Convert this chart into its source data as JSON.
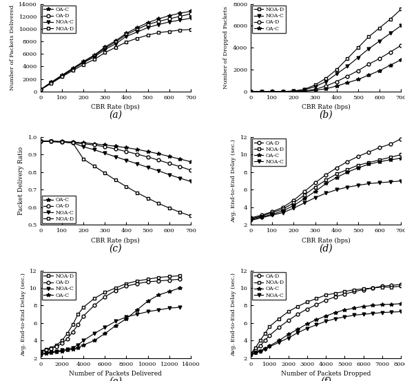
{
  "cbr_rates": [
    0,
    50,
    100,
    150,
    200,
    250,
    300,
    350,
    400,
    450,
    500,
    550,
    600,
    650,
    700
  ],
  "a_OA_C": [
    300,
    1500,
    2600,
    3700,
    4800,
    5800,
    7100,
    8100,
    9300,
    10200,
    11000,
    11600,
    12100,
    12500,
    12800
  ],
  "a_OA_D": [
    300,
    1450,
    2550,
    3650,
    4700,
    5700,
    6900,
    7900,
    9100,
    9900,
    10700,
    11200,
    11600,
    12000,
    12400
  ],
  "a_NOA_C": [
    300,
    1400,
    2450,
    3550,
    4600,
    5500,
    6700,
    7600,
    8800,
    9500,
    10200,
    10700,
    11100,
    11400,
    11700
  ],
  "a_NOA_D": [
    280,
    1300,
    2350,
    3350,
    4300,
    5100,
    6200,
    7050,
    7900,
    8500,
    9000,
    9400,
    9600,
    9800,
    9900
  ],
  "b_NOA_D": [
    0,
    0,
    0,
    0,
    50,
    200,
    600,
    1200,
    2000,
    3000,
    4000,
    5000,
    5800,
    6600,
    7500
  ],
  "b_NOA_C": [
    0,
    0,
    0,
    0,
    30,
    150,
    450,
    900,
    1600,
    2300,
    3100,
    3900,
    4600,
    5300,
    6000
  ],
  "b_OA_D": [
    0,
    0,
    0,
    0,
    10,
    50,
    200,
    500,
    900,
    1400,
    1900,
    2500,
    3000,
    3600,
    4200
  ],
  "b_OA_C": [
    0,
    0,
    0,
    0,
    5,
    30,
    100,
    250,
    500,
    800,
    1100,
    1500,
    1900,
    2400,
    2900
  ],
  "c_OA_C": [
    0.978,
    0.978,
    0.975,
    0.972,
    0.968,
    0.962,
    0.955,
    0.948,
    0.94,
    0.93,
    0.918,
    0.905,
    0.89,
    0.875,
    0.86
  ],
  "c_OA_D": [
    0.975,
    0.975,
    0.972,
    0.968,
    0.962,
    0.955,
    0.945,
    0.932,
    0.918,
    0.903,
    0.887,
    0.869,
    0.85,
    0.832,
    0.812
  ],
  "c_NOA_C": [
    0.975,
    0.975,
    0.972,
    0.968,
    0.945,
    0.928,
    0.908,
    0.888,
    0.868,
    0.848,
    0.828,
    0.808,
    0.786,
    0.766,
    0.747
  ],
  "c_NOA_D": [
    0.975,
    0.975,
    0.972,
    0.968,
    0.875,
    0.835,
    0.795,
    0.755,
    0.718,
    0.683,
    0.652,
    0.622,
    0.596,
    0.572,
    0.551
  ],
  "d_cbr": [
    0,
    50,
    100,
    150,
    200,
    250,
    300,
    350,
    400,
    450,
    500,
    550,
    600,
    650,
    700
  ],
  "d_OA_D": [
    2.8,
    3.1,
    3.5,
    4.0,
    4.8,
    5.8,
    6.8,
    7.7,
    8.5,
    9.2,
    9.8,
    10.3,
    10.8,
    11.2,
    11.8
  ],
  "d_NOA_D": [
    2.7,
    3.0,
    3.4,
    3.8,
    4.5,
    5.4,
    6.3,
    7.1,
    7.8,
    8.3,
    8.8,
    9.1,
    9.4,
    9.7,
    10.0
  ],
  "d_OA_C": [
    2.6,
    2.9,
    3.2,
    3.6,
    4.2,
    5.0,
    5.8,
    6.7,
    7.4,
    8.0,
    8.5,
    8.9,
    9.2,
    9.4,
    9.6
  ],
  "d_NOA_C": [
    2.5,
    2.8,
    3.1,
    3.4,
    3.9,
    4.5,
    5.1,
    5.6,
    6.0,
    6.3,
    6.5,
    6.7,
    6.8,
    6.9,
    7.0
  ],
  "e_pkts": [
    0,
    500,
    1000,
    1500,
    2000,
    2500,
    3000,
    3500,
    4000,
    5000,
    6000,
    7000,
    8000,
    9000,
    10000,
    11000,
    12000,
    13000
  ],
  "e_NOA_D": [
    2.8,
    3.0,
    3.2,
    3.5,
    4.0,
    4.8,
    5.8,
    7.0,
    7.8,
    8.8,
    9.5,
    10.0,
    10.5,
    10.8,
    11.0,
    11.2,
    11.3,
    11.4
  ],
  "e_OA_D": [
    2.7,
    2.9,
    3.1,
    3.3,
    3.7,
    4.2,
    5.0,
    5.8,
    6.8,
    8.0,
    9.0,
    9.7,
    10.2,
    10.5,
    10.7,
    10.8,
    10.9,
    11.0
  ],
  "e_NOA_C": [
    2.5,
    2.6,
    2.7,
    2.8,
    2.9,
    3.0,
    3.2,
    3.5,
    4.0,
    4.8,
    5.5,
    6.2,
    6.7,
    7.0,
    7.3,
    7.5,
    7.7,
    7.8
  ],
  "e_OA_C": [
    2.4,
    2.5,
    2.6,
    2.7,
    2.8,
    2.9,
    3.0,
    3.2,
    3.5,
    4.0,
    4.8,
    5.7,
    6.5,
    7.5,
    8.5,
    9.2,
    9.6,
    10.0
  ],
  "f_dropped": [
    0,
    250,
    500,
    750,
    1000,
    1500,
    2000,
    2500,
    3000,
    3500,
    4000,
    4500,
    5000,
    5500,
    6000,
    6500,
    7000,
    7500,
    8000
  ],
  "f_OA_D": [
    2.5,
    2.9,
    3.4,
    4.0,
    4.6,
    5.5,
    6.3,
    7.0,
    7.6,
    8.1,
    8.6,
    9.0,
    9.3,
    9.6,
    9.8,
    10.0,
    10.2,
    10.3,
    10.4
  ],
  "f_NOA_D": [
    2.5,
    3.2,
    4.0,
    4.8,
    5.6,
    6.5,
    7.3,
    7.9,
    8.4,
    8.8,
    9.2,
    9.4,
    9.6,
    9.8,
    9.9,
    10.0,
    10.1,
    10.1,
    10.2
  ],
  "f_OA_C": [
    2.4,
    2.6,
    2.8,
    3.1,
    3.4,
    4.0,
    4.7,
    5.3,
    5.9,
    6.4,
    6.8,
    7.2,
    7.5,
    7.7,
    7.9,
    8.0,
    8.1,
    8.15,
    8.2
  ],
  "f_NOA_C": [
    2.4,
    2.6,
    2.8,
    3.0,
    3.3,
    3.8,
    4.3,
    4.9,
    5.4,
    5.8,
    6.2,
    6.5,
    6.7,
    6.9,
    7.0,
    7.1,
    7.2,
    7.25,
    7.3
  ]
}
